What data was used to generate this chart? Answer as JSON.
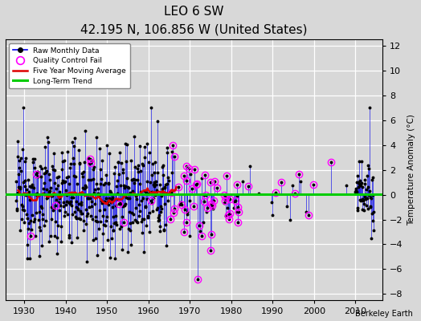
{
  "title": "LEO 6 SW",
  "subtitle": "42.195 N, 106.856 W (United States)",
  "ylabel": "Temperature Anomaly (°C)",
  "credit": "Berkeley Earth",
  "xlim": [
    1925.5,
    2016.5
  ],
  "ylim": [
    -8.5,
    12.5
  ],
  "yticks": [
    -8,
    -6,
    -4,
    -2,
    0,
    2,
    4,
    6,
    8,
    10,
    12
  ],
  "xticks": [
    1930,
    1940,
    1950,
    1960,
    1970,
    1980,
    1990,
    2000,
    2010
  ],
  "raw_color": "#0000EE",
  "qc_color": "#FF00FF",
  "moving_avg_color": "#DD0000",
  "trend_color": "#00CC00",
  "background_color": "#D8D8D8",
  "plot_bg": "#D8D8D8",
  "seed": 12345
}
